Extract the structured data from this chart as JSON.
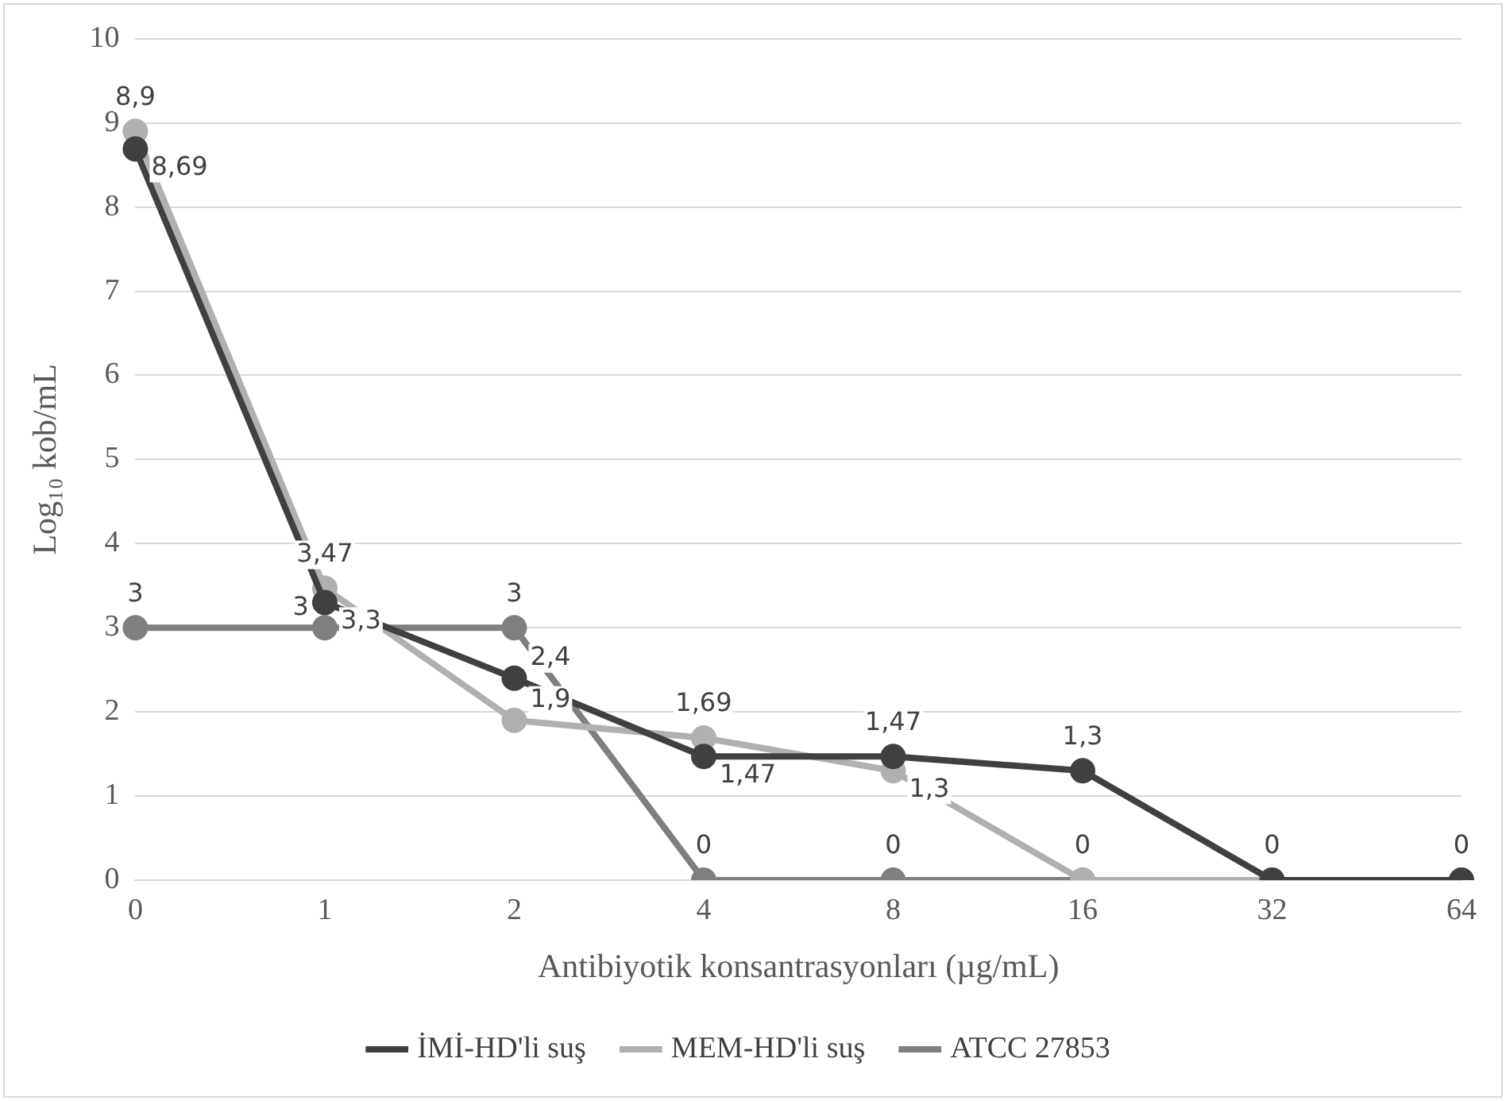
{
  "chart_data": {
    "type": "line",
    "xlabel": "Antibiyotik konsantrasyonları (µg/mL)",
    "ylabel": "Log₁₀ kob/mL",
    "categories": [
      "0",
      "1",
      "2",
      "4",
      "8",
      "16",
      "32",
      "64"
    ],
    "series": [
      {
        "name": "İMİ-HD'li suş",
        "color": "#404040",
        "values": [
          8.69,
          3.3,
          2.4,
          1.47,
          1.47,
          1.3,
          0,
          0
        ],
        "value_labels": [
          "8,69",
          "3,3",
          "2,4",
          "1,47",
          "1,47",
          "1,3",
          null,
          null
        ]
      },
      {
        "name": "MEM-HD'li suş",
        "color": "#b0b0b0",
        "values": [
          8.9,
          3.47,
          1.9,
          1.69,
          1.3,
          0,
          0,
          0
        ],
        "value_labels": [
          "8,9",
          "3,47",
          "1,9",
          "1,69",
          "1,3",
          null,
          null,
          null
        ]
      },
      {
        "name": "ATCC 27853",
        "color": "#7f7f7f",
        "values": [
          3,
          3,
          3,
          0,
          0,
          0,
          0,
          0
        ],
        "value_labels": [
          "3",
          "3",
          "3",
          "0",
          "0",
          "0",
          "0",
          "0"
        ]
      }
    ],
    "ylim": [
      0,
      10
    ],
    "yticks": [
      0,
      1,
      2,
      3,
      4,
      5,
      6,
      7,
      8,
      9,
      10
    ],
    "grid": "y",
    "legend": "bottom",
    "marker": "circle",
    "line_style": "solid"
  }
}
